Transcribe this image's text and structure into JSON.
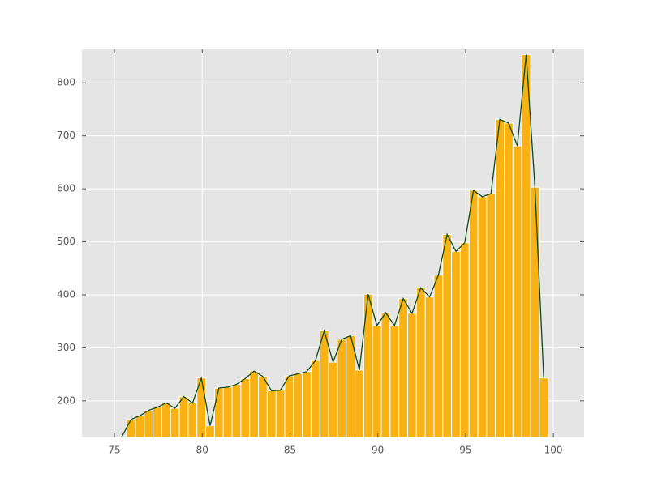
{
  "chart_data": {
    "type": "histogram",
    "bins": [
      75.7,
      76.2,
      76.7,
      77.2,
      77.7,
      78.2,
      78.7,
      79.2,
      79.7,
      80.2,
      80.7,
      81.2,
      81.7,
      82.2,
      82.7,
      83.2,
      83.7,
      84.2,
      84.7,
      85.2,
      85.7,
      86.2,
      86.7,
      87.2,
      87.7,
      88.2,
      88.7,
      89.2,
      89.7,
      90.2,
      90.7,
      91.2,
      91.7,
      92.2,
      92.7,
      93.2,
      93.7,
      94.2,
      94.7,
      95.2,
      95.7,
      96.2,
      96.7,
      97.2,
      97.7,
      98.2,
      98.7,
      99.2,
      99.7
    ],
    "values": [
      165,
      172,
      182,
      188,
      196,
      186,
      208,
      196,
      243,
      153,
      224,
      226,
      231,
      242,
      256,
      246,
      219,
      220,
      247,
      251,
      255,
      276,
      332,
      273,
      316,
      323,
      258,
      401,
      342,
      366,
      342,
      393,
      365,
      413,
      396,
      437,
      514,
      482,
      498,
      597,
      585,
      591,
      731,
      724,
      681,
      853,
      603,
      243
    ],
    "color": "#f9b213",
    "line": {
      "color": "#0f4a1a",
      "x": [
        75.3,
        75.95,
        76.45,
        76.95,
        77.45,
        77.95,
        78.45,
        78.95,
        79.45,
        79.95,
        80.45,
        80.95,
        81.45,
        81.95,
        82.45,
        82.95,
        83.45,
        83.95,
        84.45,
        84.95,
        85.45,
        85.95,
        86.45,
        86.95,
        87.45,
        87.95,
        88.45,
        88.95,
        89.45,
        89.95,
        90.45,
        90.95,
        91.45,
        91.95,
        92.45,
        92.95,
        93.45,
        93.95,
        94.45,
        94.95,
        95.45,
        95.95,
        96.45,
        96.95,
        97.45,
        97.95,
        98.45,
        98.95,
        99.45
      ],
      "values": [
        125,
        165,
        172,
        182,
        188,
        196,
        186,
        208,
        196,
        243,
        153,
        224,
        226,
        231,
        242,
        256,
        246,
        219,
        220,
        247,
        251,
        255,
        276,
        332,
        273,
        316,
        323,
        258,
        401,
        342,
        366,
        342,
        393,
        365,
        413,
        396,
        437,
        514,
        482,
        498,
        597,
        585,
        591,
        731,
        724,
        681,
        853,
        603,
        243
      ]
    },
    "xlim": [
      73.15,
      101.75
    ],
    "ylim": [
      131,
      863
    ],
    "xticks": [
      75,
      80,
      85,
      90,
      95,
      100
    ],
    "yticks": [
      200,
      300,
      400,
      500,
      600,
      700,
      800
    ],
    "grid": true
  }
}
